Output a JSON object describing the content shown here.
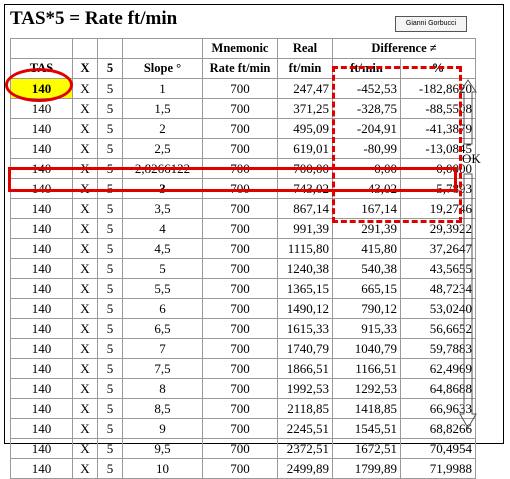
{
  "title": "TAS*5 = Rate ft/min",
  "author_button": "Gianni Gorbucci",
  "ok_label": "OK",
  "headers": {
    "row1": [
      "",
      "",
      "",
      "",
      "Mnemonic",
      "Real",
      "Difference ≠",
      ""
    ],
    "row2": [
      "TAS",
      "X",
      "5",
      "Slope °",
      "Rate ft/min",
      "ft/min",
      "ft/min",
      "%"
    ]
  },
  "rows": [
    [
      "140",
      "X",
      "5",
      "1",
      "700",
      "247,47",
      "-452,53",
      "-182,8620"
    ],
    [
      "140",
      "X",
      "5",
      "1,5",
      "700",
      "371,25",
      "-328,75",
      "-88,5508"
    ],
    [
      "140",
      "X",
      "5",
      "2",
      "700",
      "495,09",
      "-204,91",
      "-41,3879"
    ],
    [
      "140",
      "X",
      "5",
      "2,5",
      "700",
      "619,01",
      "-80,99",
      "-13,0845"
    ],
    [
      "140",
      "X",
      "5",
      "2,8266122",
      "700",
      "700,00",
      "0,00",
      "0,0000"
    ],
    [
      "140",
      "X",
      "5",
      "3",
      "700",
      "743,02",
      "43,02",
      "5,7893"
    ],
    [
      "140",
      "X",
      "5",
      "3,5",
      "700",
      "867,14",
      "167,14",
      "19,2746"
    ],
    [
      "140",
      "X",
      "5",
      "4",
      "700",
      "991,39",
      "291,39",
      "29,3922"
    ],
    [
      "140",
      "X",
      "5",
      "4,5",
      "700",
      "1115,80",
      "415,80",
      "37,2647"
    ],
    [
      "140",
      "X",
      "5",
      "5",
      "700",
      "1240,38",
      "540,38",
      "43,5655"
    ],
    [
      "140",
      "X",
      "5",
      "5,5",
      "700",
      "1365,15",
      "665,15",
      "48,7234"
    ],
    [
      "140",
      "X",
      "5",
      "6",
      "700",
      "1490,12",
      "790,12",
      "53,0240"
    ],
    [
      "140",
      "X",
      "5",
      "6,5",
      "700",
      "1615,33",
      "915,33",
      "56,6652"
    ],
    [
      "140",
      "X",
      "5",
      "7",
      "700",
      "1740,79",
      "1040,79",
      "59,7883"
    ],
    [
      "140",
      "X",
      "5",
      "7,5",
      "700",
      "1866,51",
      "1166,51",
      "62,4969"
    ],
    [
      "140",
      "X",
      "5",
      "8",
      "700",
      "1992,53",
      "1292,53",
      "64,8688"
    ],
    [
      "140",
      "X",
      "5",
      "8,5",
      "700",
      "2118,85",
      "1418,85",
      "66,9633"
    ],
    [
      "140",
      "X",
      "5",
      "9",
      "700",
      "2245,51",
      "1545,51",
      "68,8266"
    ],
    [
      "140",
      "X",
      "5",
      "9,5",
      "700",
      "2372,51",
      "1672,51",
      "70,4954"
    ],
    [
      "140",
      "X",
      "5",
      "10",
      "700",
      "2499,89",
      "1799,89",
      "71,9988"
    ]
  ],
  "colors": {
    "highlight": "#ffff00",
    "annotation": "#e00000",
    "grid": "#9a9a9a"
  }
}
